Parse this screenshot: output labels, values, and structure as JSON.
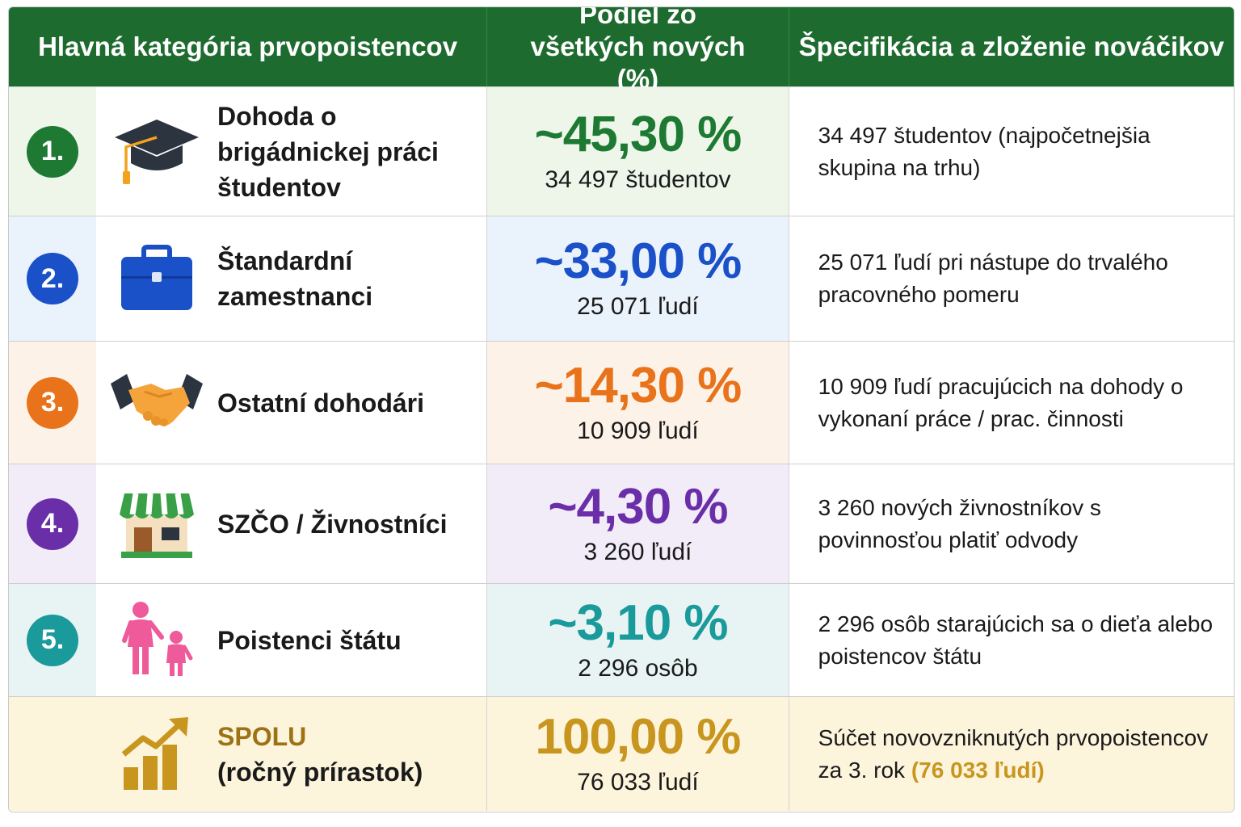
{
  "header": {
    "col1": "Hlavná kategória prvopoistencov",
    "col2": "Podiel zo všetkých nových (%)",
    "col3": "Špecifikácia a zloženie nováčikov"
  },
  "rows": [
    {
      "number": "1.",
      "icon": "graduation-cap-icon",
      "label": "Dohoda o brigádnickej práci študentov",
      "percent": "~45,30 %",
      "count": "34 497 študentov",
      "spec": "34 497 študentov (najpočetnejšia skupina na trhu)",
      "accent": "#1e7a33",
      "bg": "#eef6ea"
    },
    {
      "number": "2.",
      "icon": "briefcase-icon",
      "label": "Štandardní zamestnanci",
      "percent": "~33,00 %",
      "count": "25 071 ľudí",
      "spec": "25 071 ľudí pri nástupe do trvalého pracovného pomeru",
      "accent": "#1a50c8",
      "bg": "#eaf2fc"
    },
    {
      "number": "3.",
      "icon": "handshake-icon",
      "label": "Ostatní dohodári",
      "percent": "~14,30 %",
      "count": "10 909 ľudí",
      "spec": "10 909 ľudí pracujúcich na dohody o vykonaní práce / prac. činnosti",
      "accent": "#e8731a",
      "bg": "#fdf2e8"
    },
    {
      "number": "4.",
      "icon": "shop-icon",
      "label": "SZČO / Živnostníci",
      "percent": "~4,30 %",
      "count": "3 260 ľudí",
      "spec": "3 260 nových živnostníkov s povinnosťou platiť odvody",
      "accent": "#6a2fa8",
      "bg": "#f2ecf8"
    },
    {
      "number": "5.",
      "icon": "parent-child-icon",
      "label": "Poistenci štátu",
      "percent": "~3,10 %",
      "count": "2 296 osôb",
      "spec": "2 296 osôb starajúcich sa o dieťa alebo poistencov štátu",
      "accent": "#1a9a9a",
      "bg": "#e8f4f3"
    }
  ],
  "total": {
    "icon": "growth-chart-icon",
    "label_line1": "SPOLU",
    "label_line2": "(ročný prírastok)",
    "percent": "100,00 %",
    "count": "76 033 ľudí",
    "spec_text": "Súčet novovzniknutých prvopoistencov za 3. rok",
    "spec_highlight": "(76 033 ľudí)",
    "accent": "#b8860b",
    "bg": "#fdf4dc"
  }
}
